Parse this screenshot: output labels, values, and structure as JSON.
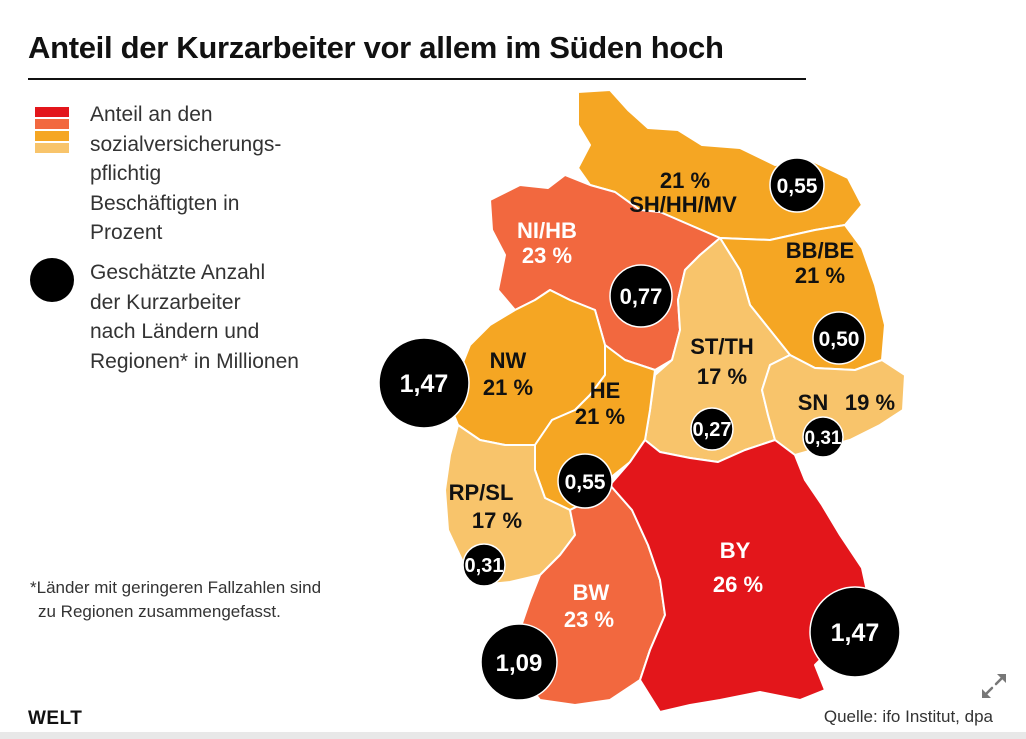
{
  "title": "Anteil der Kurzarbeiter vor allem im Süden hoch",
  "legend": {
    "share_lines": [
      "Anteil an den",
      "sozialversicherungs-",
      "pflichtig",
      "Beschäftigten in",
      "Prozent"
    ],
    "count_lines": [
      "Geschätzte Anzahl",
      "der Kurzarbeiter",
      "nach Ländern und",
      "Regionen* in Millionen"
    ],
    "swatch_colors": [
      "#e3161b",
      "#f2683f",
      "#f5a623",
      "#f8c46b"
    ]
  },
  "regions": [
    {
      "id": "sh-hh-mv",
      "name": "SH/HH/MV",
      "share": "21 %",
      "count": "0,55",
      "color": "#f5a623"
    },
    {
      "id": "ni-hb",
      "name": "NI/HB",
      "share": "23 %",
      "count": "0,77",
      "color": "#f2683f"
    },
    {
      "id": "bb-be",
      "name": "BB/BE",
      "share": "21 %",
      "count": "0,50",
      "color": "#f5a623"
    },
    {
      "id": "nw",
      "name": "NW",
      "share": "21 %",
      "count": "1,47",
      "color": "#f5a623"
    },
    {
      "id": "st-th",
      "name": "ST/TH",
      "share": "17 %",
      "count": "0,27",
      "color": "#f8c46b"
    },
    {
      "id": "sn",
      "name": "SN",
      "share": "19 %",
      "count": "0,31",
      "color": "#f8c46b"
    },
    {
      "id": "he",
      "name": "HE",
      "share": "21 %",
      "count": "0,55",
      "color": "#f5a623"
    },
    {
      "id": "rp-sl",
      "name": "RP/SL",
      "share": "17 %",
      "count": "0,31",
      "color": "#f8c46b"
    },
    {
      "id": "bw",
      "name": "BW",
      "share": "23 %",
      "count": "1,09",
      "color": "#f2683f"
    },
    {
      "id": "by",
      "name": "BY",
      "share": "26 %",
      "count": "1,47",
      "color": "#e3161b"
    }
  ],
  "footnote_lines": [
    "*Länder mit geringeren Fallzahlen sind",
    "zu Regionen zusammengefasst."
  ],
  "logo": "WELT",
  "source": "Quelle: ifo Institut, dpa",
  "icons": {
    "expand": "expand-arrows-icon"
  }
}
